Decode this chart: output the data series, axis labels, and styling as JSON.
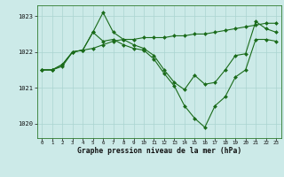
{
  "background_color": "#cceae8",
  "grid_color": "#aad4d0",
  "line_color": "#1a6b1a",
  "marker_color": "#1a6b1a",
  "xlabel": "Graphe pression niveau de la mer (hPa)",
  "ylim": [
    1019.6,
    1023.3
  ],
  "xlim": [
    -0.5,
    23.5
  ],
  "yticks": [
    1020,
    1021,
    1022,
    1023
  ],
  "xticks": [
    0,
    1,
    2,
    3,
    4,
    5,
    6,
    7,
    8,
    9,
    10,
    11,
    12,
    13,
    14,
    15,
    16,
    17,
    18,
    19,
    20,
    21,
    22,
    23
  ],
  "series": [
    [
      1021.5,
      1021.5,
      1021.6,
      1022.0,
      1022.05,
      1022.1,
      1022.2,
      1022.3,
      1022.35,
      1022.35,
      1022.4,
      1022.4,
      1022.4,
      1022.45,
      1022.45,
      1022.5,
      1022.5,
      1022.55,
      1022.6,
      1022.65,
      1022.7,
      1022.75,
      1022.8,
      1022.8
    ],
    [
      1021.5,
      1021.5,
      1021.65,
      1022.0,
      1022.05,
      1022.55,
      1023.1,
      1022.55,
      1022.35,
      1022.2,
      1022.1,
      1021.9,
      1021.5,
      1021.15,
      1020.95,
      1021.35,
      1021.1,
      1021.15,
      1021.5,
      1021.9,
      1021.95,
      1022.85,
      1022.65,
      1022.55
    ],
    [
      1021.5,
      1021.5,
      1021.65,
      1022.0,
      1022.05,
      1022.55,
      1022.3,
      1022.35,
      1022.2,
      1022.1,
      1022.05,
      1021.8,
      1021.4,
      1021.05,
      1020.5,
      1020.15,
      1019.9,
      1020.5,
      1020.75,
      1021.3,
      1021.5,
      1022.35,
      1022.35,
      1022.3
    ]
  ]
}
